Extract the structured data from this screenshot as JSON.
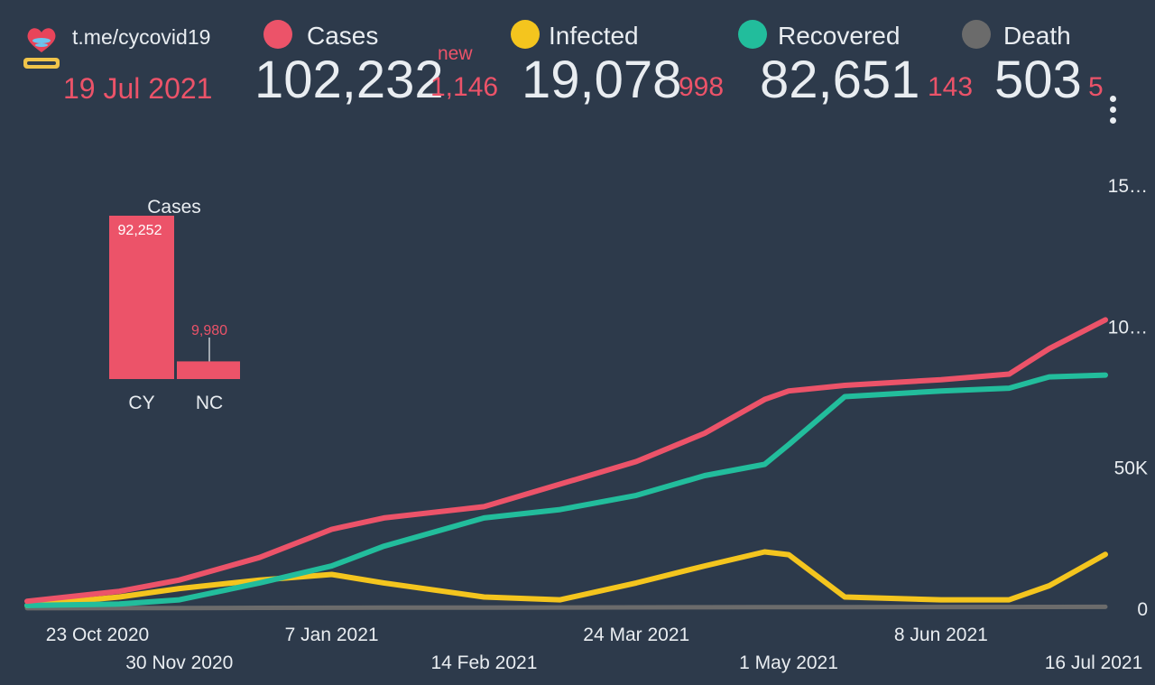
{
  "header": {
    "channel": "t.me/cycovid19",
    "date": "19 Jul 2021",
    "new_label": "new",
    "stats": [
      {
        "label": "Cases",
        "value": "102,232",
        "delta": "1,146",
        "color": "#ec5369"
      },
      {
        "label": "Infected",
        "value": "19,078",
        "delta": "998",
        "color": "#f4c51e"
      },
      {
        "label": "Recovered",
        "value": "82,651",
        "delta": "143",
        "color": "#22bd9c"
      },
      {
        "label": "Death",
        "value": "503",
        "delta": "5",
        "color": "#6b6b6b"
      }
    ]
  },
  "icons": {
    "logo": "heart-globe-logo",
    "menu": "more-vertical-icon"
  },
  "inset_chart": {
    "type": "bar",
    "title": "Cases",
    "categories": [
      "CY",
      "NC"
    ],
    "values": [
      92252,
      9980
    ],
    "value_labels": [
      "92,252",
      "9,980"
    ],
    "color": "#ec5369"
  },
  "chart_data": {
    "type": "line",
    "x_ticks_row1": [
      "23 Oct 2020",
      "7 Jan 2021",
      "24 Mar 2021",
      "8 Jun 2021"
    ],
    "x_ticks_row2": [
      "30 Nov 2020",
      "14 Feb 2021",
      "1 May 2021",
      "16 Jul 2021"
    ],
    "y_ticks": [
      "0",
      "50K",
      "10…",
      "15…"
    ],
    "ylim": [
      0,
      150000
    ],
    "xlim": [
      "2020-10-23",
      "2021-07-19"
    ],
    "dates": [
      "2020-10-23",
      "2020-11-15",
      "2020-11-30",
      "2020-12-20",
      "2021-01-07",
      "2021-01-20",
      "2021-02-14",
      "2021-03-05",
      "2021-03-24",
      "2021-04-10",
      "2021-04-25",
      "2021-05-01",
      "2021-05-15",
      "2021-06-08",
      "2021-06-25",
      "2021-07-05",
      "2021-07-19"
    ],
    "series": [
      {
        "name": "Cases",
        "color": "#ec5369",
        "values": [
          2500,
          6000,
          10000,
          18000,
          28000,
          32000,
          36000,
          44000,
          52000,
          62000,
          74000,
          77000,
          79000,
          81000,
          83000,
          92000,
          102232
        ]
      },
      {
        "name": "Infected",
        "color": "#f4c51e",
        "values": [
          1000,
          4000,
          7000,
          10000,
          12000,
          9000,
          4000,
          3000,
          9000,
          15000,
          20000,
          19000,
          4000,
          3000,
          3000,
          8000,
          19078
        ]
      },
      {
        "name": "Recovered",
        "color": "#22bd9c",
        "values": [
          1000,
          1500,
          3000,
          9000,
          15000,
          22000,
          32000,
          35000,
          40000,
          47000,
          51000,
          58000,
          75000,
          77000,
          78000,
          82000,
          82651
        ]
      },
      {
        "name": "Death",
        "color": "#6b6b6b",
        "values": [
          30,
          60,
          90,
          150,
          200,
          230,
          260,
          290,
          320,
          360,
          380,
          390,
          410,
          440,
          460,
          485,
          503
        ]
      }
    ]
  }
}
